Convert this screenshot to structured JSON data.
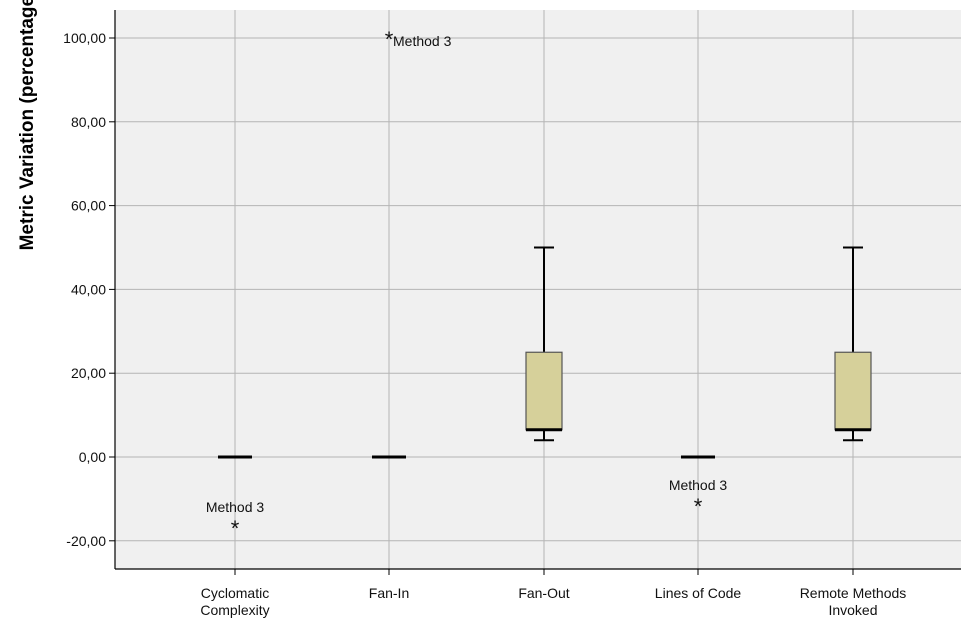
{
  "chart_data": {
    "type": "boxplot",
    "ylabel": "Metric Variation (percentage)",
    "xlabel": "",
    "ylim": [
      -27,
      108
    ],
    "yticks": [
      -20,
      0,
      20,
      40,
      60,
      80,
      100
    ],
    "ytick_labels": [
      "-20,00",
      "0,00",
      "20,00",
      "40,00",
      "60,00",
      "80,00",
      "100,00"
    ],
    "grid": true,
    "categories": [
      {
        "label_lines": [
          "Cyclomatic",
          "Complexity"
        ]
      },
      {
        "label_lines": [
          "Fan-In"
        ]
      },
      {
        "label_lines": [
          "Fan-Out"
        ]
      },
      {
        "label_lines": [
          "Lines of Code"
        ]
      },
      {
        "label_lines": [
          "Remote Methods",
          "Invoked"
        ]
      }
    ],
    "boxes": [
      {
        "min": 0,
        "q1": 0,
        "median": 0,
        "q3": 0,
        "max": 0
      },
      {
        "min": 0,
        "q1": 0,
        "median": 0,
        "q3": 0,
        "max": 0
      },
      {
        "min": 4,
        "q1": 6.5,
        "median": 6.5,
        "q3": 25,
        "max": 50
      },
      {
        "min": 0,
        "q1": 0,
        "median": 0,
        "q3": 0,
        "max": 0
      },
      {
        "min": 4,
        "q1": 6.5,
        "median": 6.5,
        "q3": 25,
        "max": 50
      }
    ],
    "outliers": [
      {
        "category": 0,
        "value": -16.7,
        "label": "Method 3",
        "label_pos": "above"
      },
      {
        "category": 1,
        "value": 100,
        "label": "Method 3",
        "label_pos": "right"
      },
      {
        "category": 3,
        "value": -11.5,
        "label": "Method 3",
        "label_pos": "above"
      }
    ]
  },
  "colors": {
    "plot_background": "#f0f0f0",
    "box_fill": "#d6d09a",
    "grid": "#b4b4b4",
    "frame": "#000000"
  }
}
